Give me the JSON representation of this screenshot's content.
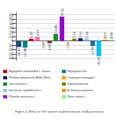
{
  "chart_data": {
    "type": "bar",
    "title": "Figure 2- Effect of  the sixteen studied extracts on A.parasiticus",
    "categories": [
      null,
      null,
      null,
      null,
      null,
      null,
      null,
      null,
      null,
      null,
      null,
      null,
      null,
      null,
      null,
      null
    ],
    "values": [
      -14.47,
      -15.98,
      5.03,
      9.53,
      -0.43,
      -5.68,
      16.28,
      55.91,
      -1.04,
      5.19,
      5.91,
      5.52,
      -11.95,
      -35.53,
      2.63,
      2.89
    ],
    "colors": [
      "#1f4e79",
      "#008080",
      "#c00000",
      "#ff69b4",
      "#ffa500",
      "#6b3a2a",
      "#228b22",
      "#9400d3",
      "#6b6b2a",
      "#808000",
      "#191970",
      "#87ceeb",
      "#1f6fa0",
      "#00bfff",
      "#ff8c00",
      "#90ee90"
    ],
    "legend_entries": [
      {
        "name": "Hippophae rhamnoides L. leaves",
        "color": "#c00000"
      },
      {
        "name": "Hippophae rha...",
        "color": "#008080"
      },
      {
        "name": "Photinia melanocarp [Bieb.] Blott",
        "color": "#191970"
      },
      {
        "name": "Crataegus monogyna",
        "color": "#ffa500"
      },
      {
        "name": "Onus boreus L.",
        "color": "#228b22"
      },
      {
        "name": "Xylem barbarum",
        "color": "#808000"
      },
      {
        "name": "Vaccinium corymbosum L.",
        "color": "#87ceeb"
      },
      {
        "name": "Echinacea purpurea",
        "color": "#ff8c00"
      },
      {
        "name": "Physalis peruviana L.",
        "color": "#9400d3"
      },
      {
        "name": "Rosa canina L.",
        "color": "#90ee90"
      }
    ],
    "legend": "bottom",
    "ylim": [
      -45,
      65
    ],
    "yticks": [
      -40,
      -30,
      -20,
      -10,
      0,
      10,
      20,
      30,
      40,
      50,
      60
    ],
    "grid": true,
    "data_labels": true,
    "tick_labels": "y"
  }
}
